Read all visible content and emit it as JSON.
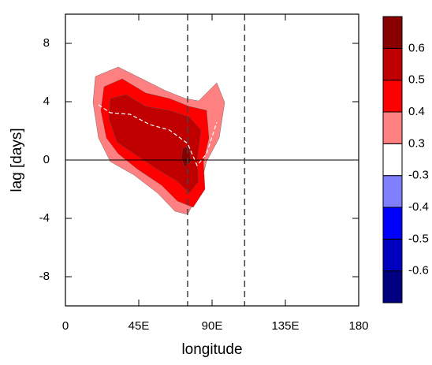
{
  "chart_data": {
    "type": "contour",
    "xlabel": "longitude",
    "ylabel": "lag [days]",
    "xlim": [
      0,
      180
    ],
    "xticks": [
      0,
      {
        "value": 45,
        "label": "45E"
      },
      {
        "value": 90,
        "label": "90E"
      },
      {
        "value": 135,
        "label": "135E"
      },
      180
    ],
    "ylim": [
      -10,
      10
    ],
    "yticks": [
      -8,
      -4,
      0,
      4,
      8
    ],
    "vlines": [
      75,
      110
    ],
    "hline": 0,
    "levels": [
      -0.6,
      -0.5,
      -0.4,
      -0.3,
      0.3,
      0.4,
      0.5,
      0.6
    ],
    "colors": [
      "#000080",
      "#0000c0",
      "#0000ff",
      "#8080ff",
      "#ffffff",
      "#ff8080",
      "#ff0000",
      "#c00000",
      "#880000"
    ]
  }
}
